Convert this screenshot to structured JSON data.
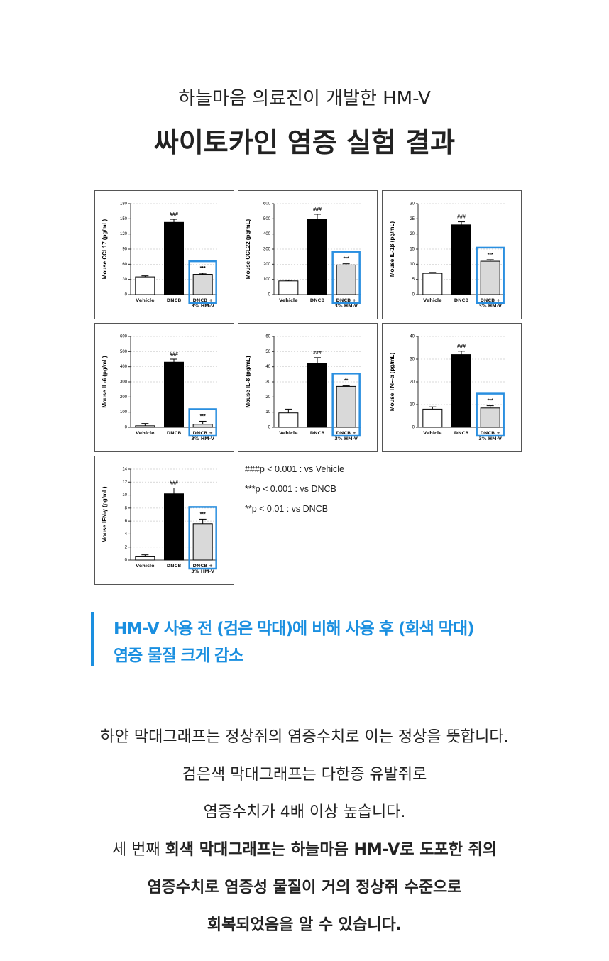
{
  "header": {
    "subtitle": "하늘마음 의료진이 개발한 HM-V",
    "title": "싸이토카인 염증 실험 결과"
  },
  "chart_data": [
    {
      "type": "bar",
      "ylabel": "Mouse CCL17 (pg/mL)",
      "categories": [
        "Vehicle",
        "DNCB",
        "DNCB +\n3% HM-V"
      ],
      "values": [
        35,
        143,
        40
      ],
      "errors": [
        2,
        6,
        2
      ],
      "colors": [
        "#ffffff",
        "#000000",
        "#d9d9d9"
      ],
      "annotations": [
        "###",
        "***"
      ],
      "ylim": [
        0,
        180
      ],
      "yticks": [
        0,
        30,
        60,
        90,
        120,
        150,
        180
      ],
      "grid": true
    },
    {
      "type": "bar",
      "ylabel": "Mouse CCL22 (pg/mL)",
      "categories": [
        "Vehicle",
        "DNCB",
        "DNCB +\n3% HM-V"
      ],
      "values": [
        90,
        495,
        195
      ],
      "errors": [
        5,
        35,
        8
      ],
      "colors": [
        "#ffffff",
        "#000000",
        "#d9d9d9"
      ],
      "annotations": [
        "###",
        "***"
      ],
      "ylim": [
        0,
        600
      ],
      "yticks": [
        0,
        100,
        200,
        300,
        400,
        500,
        600
      ],
      "grid": true
    },
    {
      "type": "bar",
      "ylabel": "Mouse IL-1β (pg/mL)",
      "categories": [
        "Vehicle",
        "DNCB",
        "DNCB +\n3% HM-V"
      ],
      "values": [
        7,
        23,
        11
      ],
      "errors": [
        0.3,
        1,
        0.5
      ],
      "colors": [
        "#ffffff",
        "#000000",
        "#d9d9d9"
      ],
      "annotations": [
        "###",
        "***"
      ],
      "ylim": [
        0,
        30
      ],
      "yticks": [
        0,
        5,
        10,
        15,
        20,
        25,
        30
      ],
      "grid": true
    },
    {
      "type": "bar",
      "ylabel": "Mouse IL-6 (pg/mL)",
      "categories": [
        "Vehicle",
        "DNCB",
        "DNCB +\n3% HM-V"
      ],
      "values": [
        10,
        430,
        20
      ],
      "errors": [
        15,
        20,
        20
      ],
      "colors": [
        "#ffffff",
        "#000000",
        "#d9d9d9"
      ],
      "annotations": [
        "###",
        "***"
      ],
      "ylim": [
        0,
        600
      ],
      "yticks": [
        0,
        100,
        200,
        300,
        400,
        500,
        600
      ],
      "grid": true
    },
    {
      "type": "bar",
      "ylabel": "Mouse IL-8 (pg/mL)",
      "categories": [
        "Vehicle",
        "DNCB",
        "DNCB +\n3% HM-V"
      ],
      "values": [
        9.5,
        42,
        27
      ],
      "errors": [
        2.5,
        4,
        0.5
      ],
      "colors": [
        "#ffffff",
        "#000000",
        "#d9d9d9"
      ],
      "annotations": [
        "###",
        "**"
      ],
      "ylim": [
        0,
        60
      ],
      "yticks": [
        0,
        10,
        20,
        30,
        40,
        50,
        60
      ],
      "grid": true
    },
    {
      "type": "bar",
      "ylabel": "Mouse TNF-α (pg/mL)",
      "categories": [
        "Vehicle",
        "DNCB",
        "DNCB +\n3% HM-V"
      ],
      "values": [
        8,
        32,
        8.5
      ],
      "errors": [
        1,
        1.5,
        1
      ],
      "colors": [
        "#ffffff",
        "#000000",
        "#d9d9d9"
      ],
      "annotations": [
        "###",
        "***"
      ],
      "ylim": [
        0,
        40
      ],
      "yticks": [
        0,
        10,
        20,
        30,
        40
      ],
      "grid": true
    },
    {
      "type": "bar",
      "ylabel": "Mouse IFN-γ (pg/mL)",
      "categories": [
        "Vehicle",
        "DNCB",
        "DNCB +\n3% HM-V"
      ],
      "values": [
        0.5,
        10.2,
        5.6
      ],
      "errors": [
        0.3,
        0.9,
        0.7
      ],
      "colors": [
        "#ffffff",
        "#000000",
        "#d9d9d9"
      ],
      "annotations": [
        "###",
        "***"
      ],
      "ylim": [
        0,
        14
      ],
      "yticks": [
        0,
        2,
        4,
        6,
        8,
        10,
        12,
        14
      ],
      "grid": true
    }
  ],
  "footnotes": [
    "###p < 0.001 : vs Vehicle",
    "***p < 0.001 : vs DNCB",
    "**p < 0.01 : vs DNCB"
  ],
  "callout": [
    "HM-V 사용 전 (검은 막대)에 비해 사용 후 (회색 막대)",
    "염증 물질 크게 감소"
  ],
  "body": [
    [
      {
        "text": "하얀 막대그래프는 정상쥐의 염증수치로 이는 정상을 뜻합니다.",
        "bold": false
      }
    ],
    [
      {
        "text": "검은색 막대그래프는 다한증 유발쥐로",
        "bold": false
      }
    ],
    [
      {
        "text": "염증수치가 4배 이상 높습니다.",
        "bold": false
      }
    ],
    [
      {
        "text": "세 번째 ",
        "bold": false
      },
      {
        "text": "회색 막대그래프는 하늘마음 HM-V로 도포한 쥐의",
        "bold": true
      }
    ],
    [
      {
        "text": "염증수치로 염증성 물질이 거의 정상쥐 수준으로",
        "bold": true
      }
    ],
    [
      {
        "text": "회복되었음을 알 수 있습니다.",
        "bold": true
      }
    ]
  ]
}
